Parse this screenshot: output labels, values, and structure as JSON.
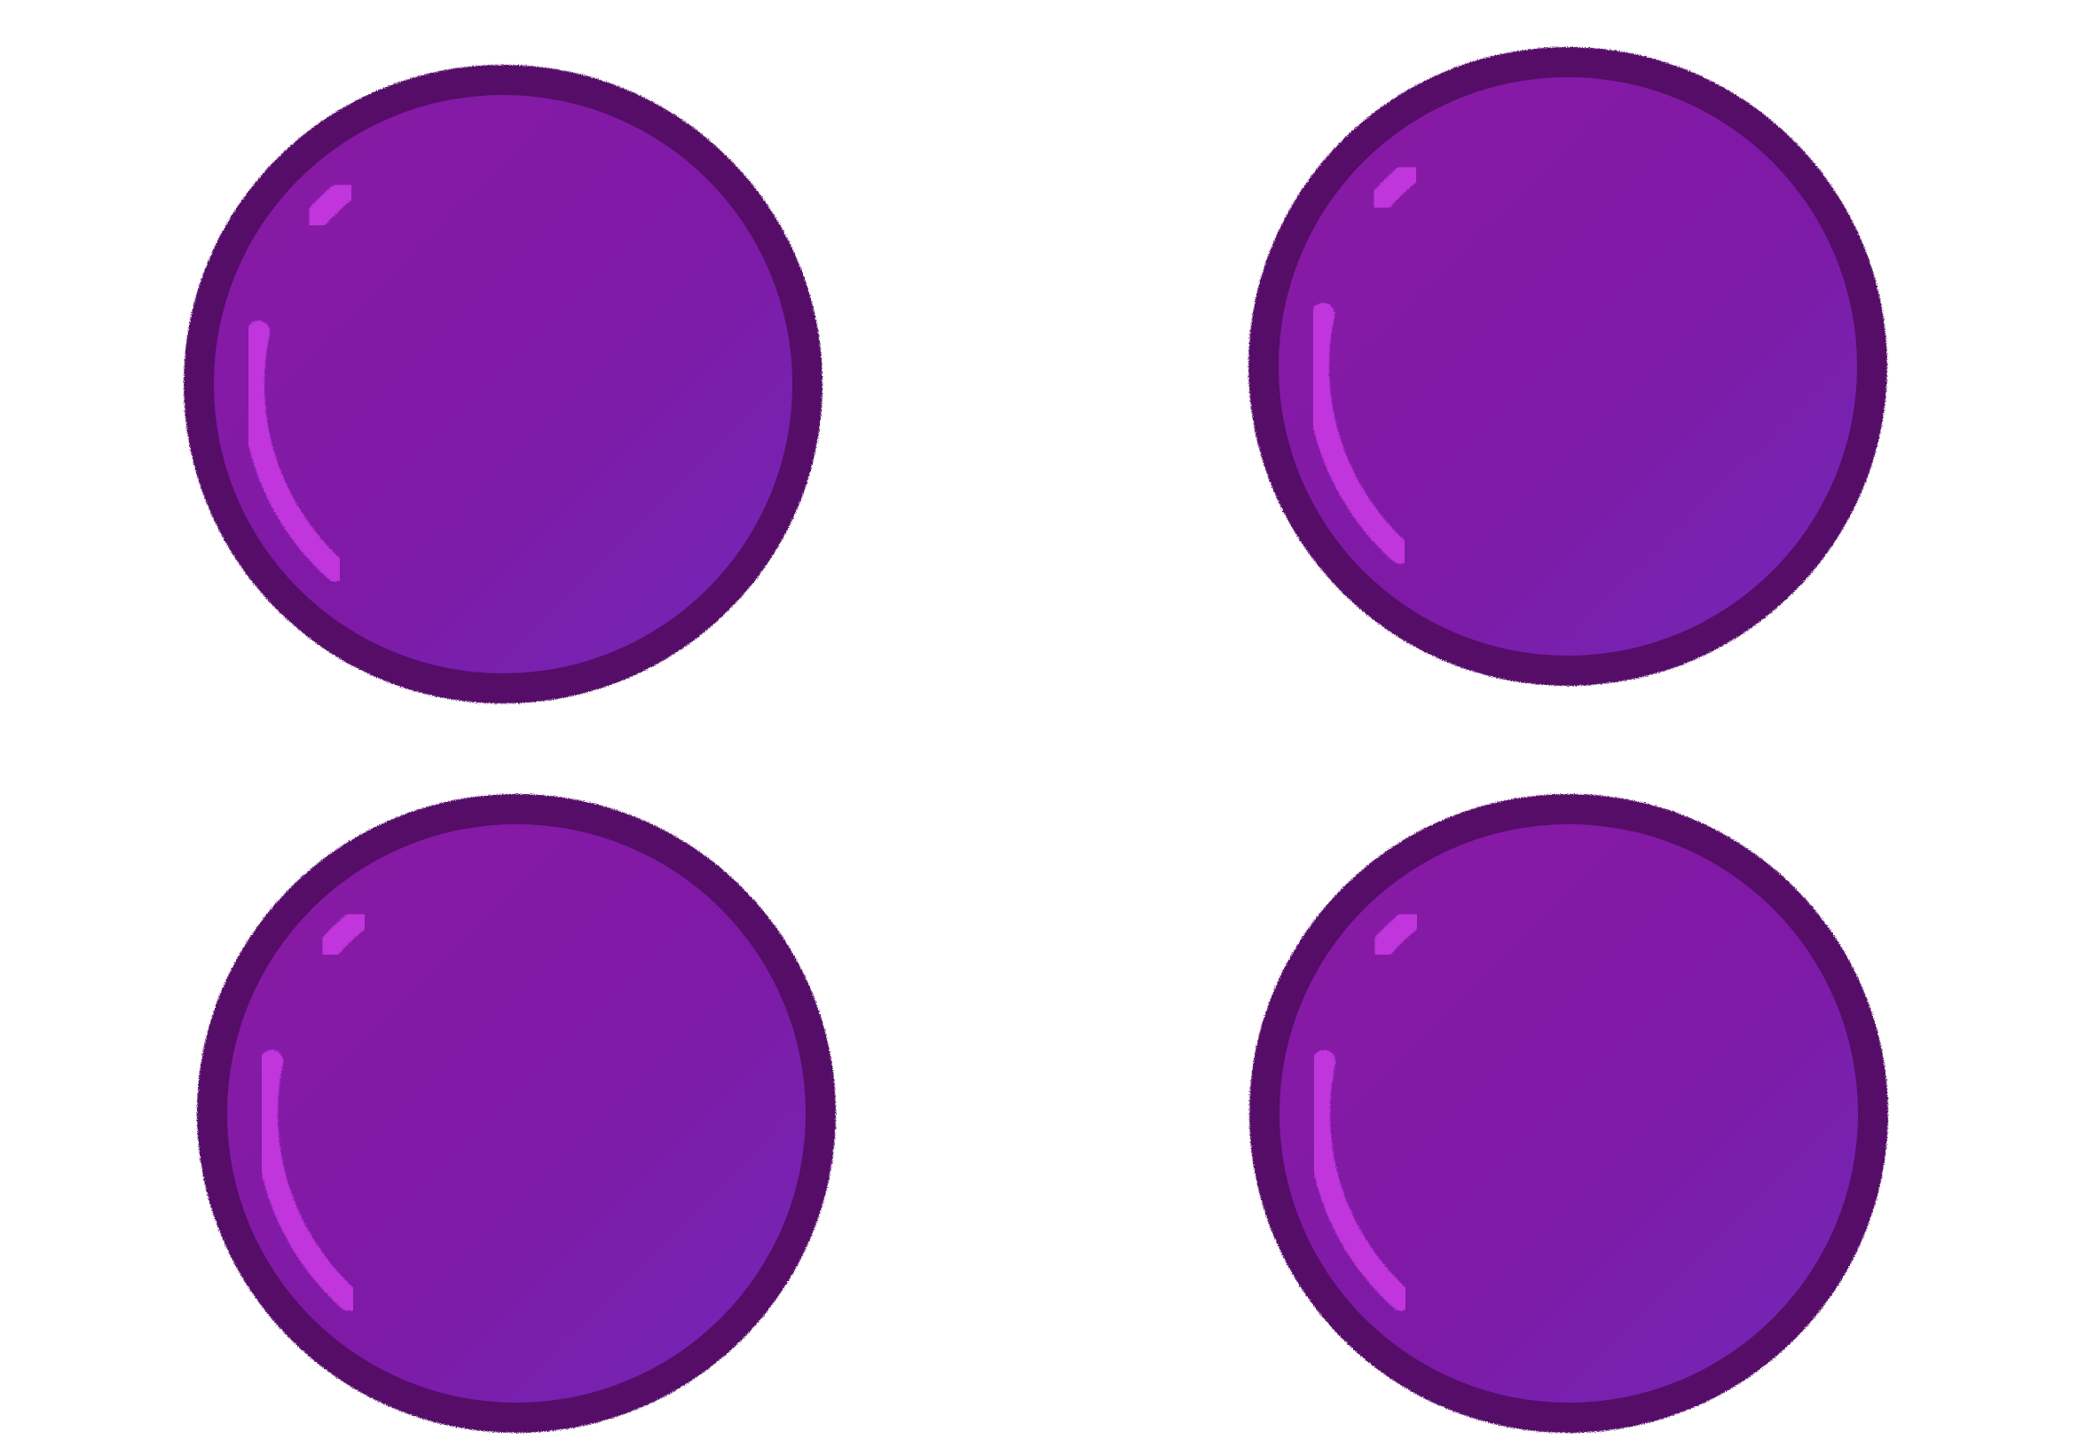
{
  "scene": {
    "background": "#ffffff",
    "colors": {
      "outline": "#550a68",
      "fill_light": "#8a1aa5",
      "fill_mid": "#7e1aa6",
      "fill_dark": "#7327b8",
      "highlight": "#c136dc"
    },
    "items": [
      {
        "name": "purple-ball-top-left",
        "shape": "glossy-circle"
      },
      {
        "name": "purple-ball-top-right",
        "shape": "glossy-circle"
      },
      {
        "name": "purple-ball-bottom-left",
        "shape": "glossy-circle"
      },
      {
        "name": "purple-ball-bottom-right",
        "shape": "glossy-circle"
      }
    ]
  }
}
